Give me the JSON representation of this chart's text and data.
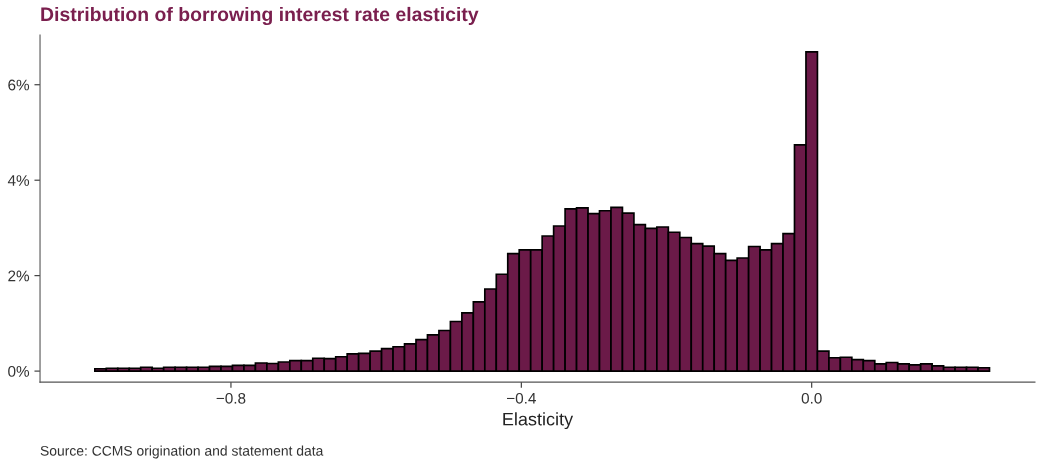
{
  "chart_data": {
    "type": "histogram",
    "title": "Distribution of borrowing interest rate elasticity",
    "xlabel": "Elasticity",
    "annotations": [
      "Source: CCMS origination and statement data"
    ],
    "color": "#6b1a48",
    "bins": [
      -0.9875,
      -0.9717,
      -0.9559,
      -0.9401,
      -0.9243,
      -0.9085,
      -0.8927,
      -0.8769,
      -0.8611,
      -0.8453,
      -0.8295,
      -0.8137,
      -0.7979,
      -0.7821,
      -0.7663,
      -0.7505,
      -0.7347,
      -0.7189,
      -0.7031,
      -0.6873,
      -0.6715,
      -0.6557,
      -0.6399,
      -0.6241,
      -0.6083,
      -0.5925,
      -0.5767,
      -0.5609,
      -0.5451,
      -0.5293,
      -0.5135,
      -0.4977,
      -0.4819,
      -0.4661,
      -0.4503,
      -0.4345,
      -0.4187,
      -0.4029,
      -0.3871,
      -0.3713,
      -0.3555,
      -0.3397,
      -0.3239,
      -0.3081,
      -0.2923,
      -0.2765,
      -0.2607,
      -0.2449,
      -0.2291,
      -0.2133,
      -0.1975,
      -0.1817,
      -0.1659,
      -0.1501,
      -0.1343,
      -0.1185,
      -0.1027,
      -0.0869,
      -0.0711,
      -0.0553,
      -0.0395,
      -0.0237,
      -0.0079,
      0.0079,
      0.0237,
      0.0395,
      0.0553,
      0.0711,
      0.0869,
      0.1027,
      0.1185,
      0.1343,
      0.1501,
      0.1659,
      0.1817,
      0.1975,
      0.2133,
      0.2291,
      0.2449
    ],
    "values": [
      0.05,
      0.06,
      0.06,
      0.06,
      0.08,
      0.06,
      0.08,
      0.08,
      0.08,
      0.08,
      0.1,
      0.1,
      0.12,
      0.12,
      0.17,
      0.16,
      0.19,
      0.22,
      0.22,
      0.27,
      0.26,
      0.3,
      0.36,
      0.37,
      0.42,
      0.47,
      0.51,
      0.57,
      0.66,
      0.76,
      0.85,
      1.04,
      1.22,
      1.45,
      1.72,
      2.03,
      2.46,
      2.54,
      2.54,
      2.83,
      3.04,
      3.4,
      3.42,
      3.3,
      3.36,
      3.43,
      3.31,
      3.07,
      2.99,
      3.02,
      2.91,
      2.8,
      2.67,
      2.62,
      2.46,
      2.32,
      2.37,
      2.61,
      2.54,
      2.67,
      2.88,
      4.74,
      6.69,
      0.42,
      0.28,
      0.29,
      0.24,
      0.22,
      0.15,
      0.18,
      0.15,
      0.13,
      0.15,
      0.11,
      0.08,
      0.08,
      0.08,
      0.07
    ],
    "xlim": [
      -1.063,
      0.3075
    ],
    "xticks": [
      {
        "value": -0.8,
        "label": "−0.8"
      },
      {
        "value": -0.4,
        "label": "−0.4"
      },
      {
        "value": 0,
        "label": "0.0"
      }
    ],
    "ylim": [
      -0.23,
      7.04
    ],
    "yticks": [
      {
        "value": 0,
        "label": "0%"
      },
      {
        "value": 2,
        "label": "2%"
      },
      {
        "value": 4,
        "label": "4%"
      },
      {
        "value": 6,
        "label": "6%"
      }
    ],
    "grid": false,
    "legend": false
  }
}
